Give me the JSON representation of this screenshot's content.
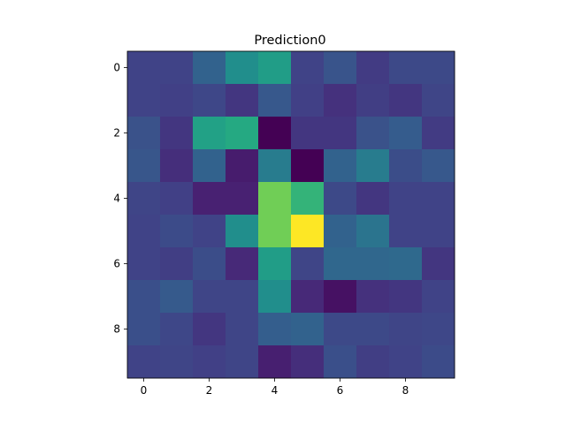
{
  "chart_data": {
    "type": "heatmap",
    "title": "Prediction0",
    "xlabel": "",
    "ylabel": "",
    "colormap": "viridis",
    "vmin": 0,
    "vmax": 1,
    "x_ticks": [
      0,
      2,
      4,
      6,
      8
    ],
    "y_ticks": [
      0,
      2,
      4,
      6,
      8
    ],
    "x_tick_labels": [
      "0",
      "2",
      "4",
      "6",
      "8"
    ],
    "y_tick_labels": [
      "0",
      "2",
      "4",
      "6",
      "8"
    ],
    "grid": false,
    "values": [
      [
        0.25,
        0.25,
        0.4,
        0.62,
        0.7,
        0.25,
        0.33,
        0.22,
        0.28,
        0.28
      ],
      [
        0.25,
        0.24,
        0.27,
        0.2,
        0.35,
        0.24,
        0.18,
        0.23,
        0.2,
        0.26
      ],
      [
        0.32,
        0.2,
        0.72,
        0.76,
        0.0,
        0.2,
        0.2,
        0.32,
        0.37,
        0.22
      ],
      [
        0.34,
        0.17,
        0.4,
        0.1,
        0.52,
        0.0,
        0.4,
        0.52,
        0.3,
        0.35
      ],
      [
        0.26,
        0.24,
        0.12,
        0.12,
        0.93,
        0.82,
        0.28,
        0.2,
        0.25,
        0.25
      ],
      [
        0.25,
        0.29,
        0.25,
        0.62,
        0.93,
        1.0,
        0.4,
        0.48,
        0.25,
        0.25
      ],
      [
        0.25,
        0.23,
        0.3,
        0.15,
        0.7,
        0.26,
        0.42,
        0.42,
        0.43,
        0.2
      ],
      [
        0.31,
        0.36,
        0.26,
        0.26,
        0.62,
        0.15,
        0.06,
        0.18,
        0.2,
        0.25
      ],
      [
        0.31,
        0.27,
        0.2,
        0.26,
        0.38,
        0.4,
        0.28,
        0.28,
        0.26,
        0.27
      ],
      [
        0.25,
        0.26,
        0.24,
        0.26,
        0.11,
        0.17,
        0.31,
        0.23,
        0.25,
        0.29
      ]
    ]
  }
}
